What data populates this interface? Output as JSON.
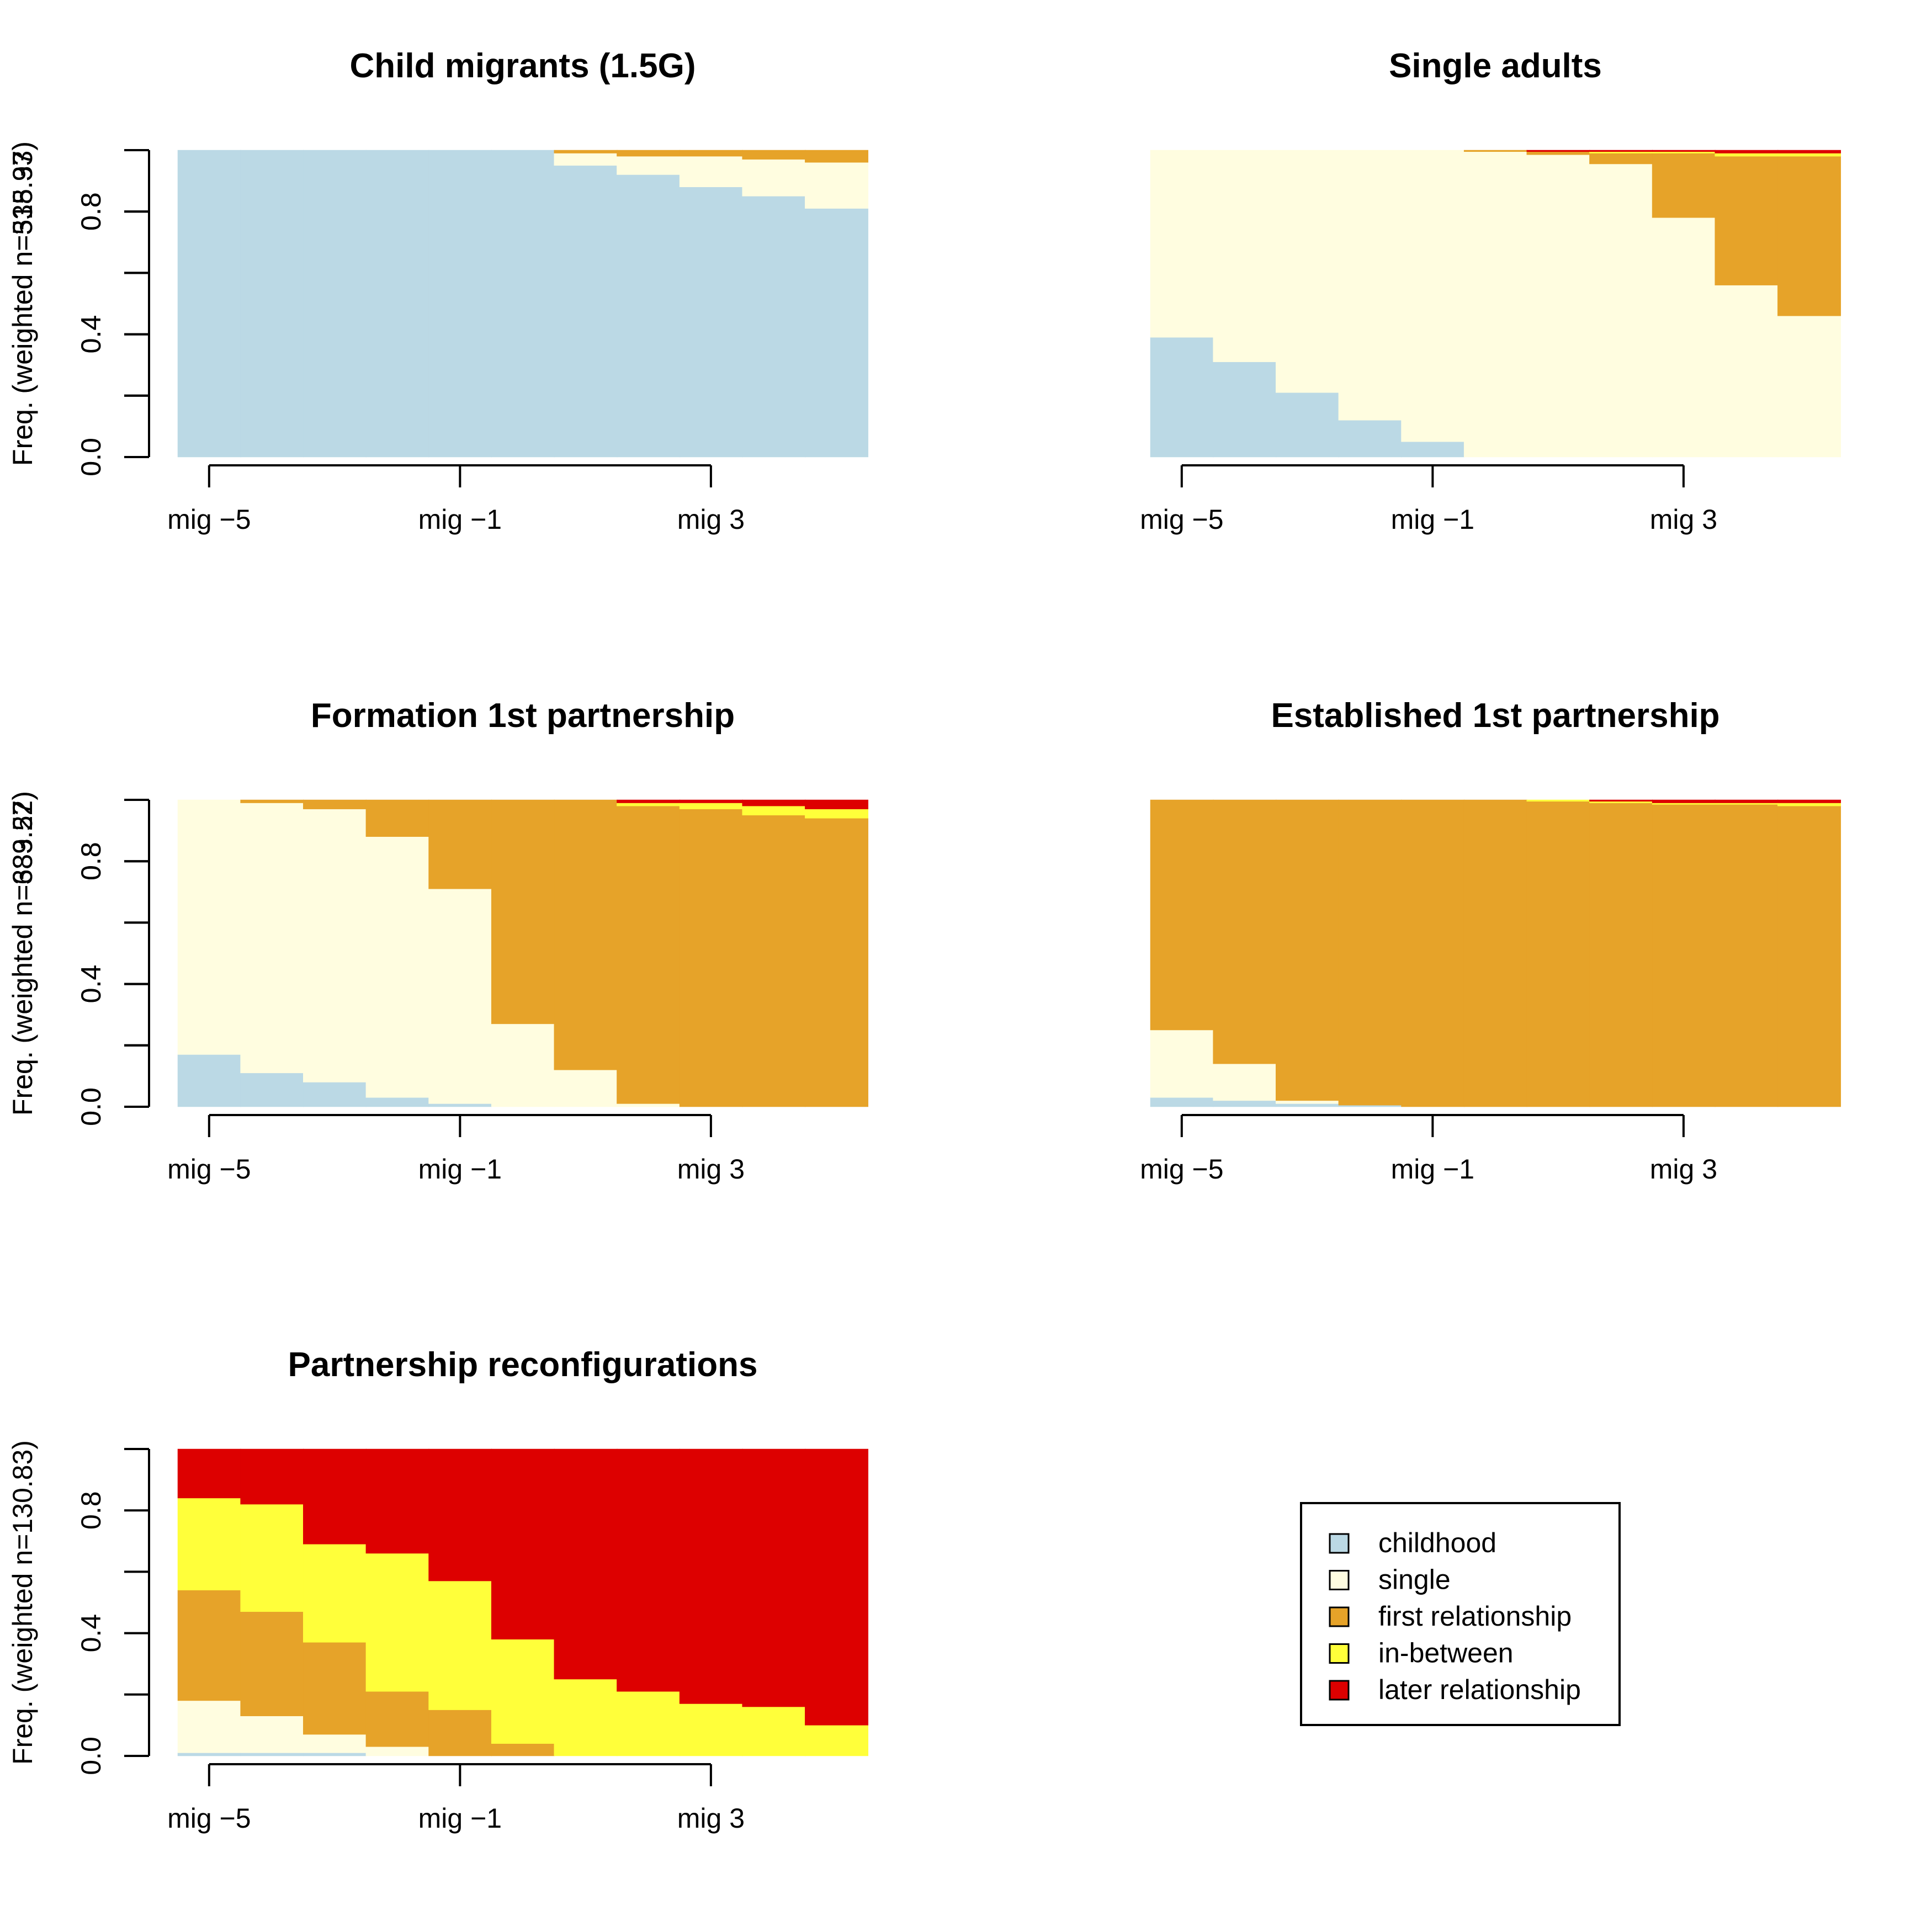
{
  "chart_data": [
    {
      "type": "bar",
      "stacked": true,
      "title": "Child migrants (1.5G)",
      "ylabel": "Freq. (weighted n=538.93)",
      "categories": [
        "mig -5",
        "mig -4",
        "mig -3",
        "mig -2",
        "mig -1",
        "mig 0",
        "mig 1",
        "mig 2",
        "mig 3",
        "mig 4",
        "mig 5"
      ],
      "x_tick_labels": [
        "mig −5",
        "mig −1",
        "mig 3"
      ],
      "x_tick_positions": [
        0,
        4,
        8
      ],
      "y_ticks": [
        "0.0",
        "0.4",
        "0.8"
      ],
      "ylim": [
        0,
        1
      ],
      "series": [
        {
          "state": "childhood",
          "values": [
            1.0,
            1.0,
            1.0,
            1.0,
            1.0,
            1.0,
            0.95,
            0.92,
            0.88,
            0.85,
            0.81
          ]
        },
        {
          "state": "single",
          "values": [
            0.0,
            0.0,
            0.0,
            0.0,
            0.0,
            0.0,
            0.04,
            0.06,
            0.1,
            0.12,
            0.15
          ]
        },
        {
          "state": "first relationship",
          "values": [
            0.0,
            0.0,
            0.0,
            0.0,
            0.0,
            0.0,
            0.01,
            0.02,
            0.02,
            0.03,
            0.04
          ]
        },
        {
          "state": "in-between",
          "values": [
            0,
            0,
            0,
            0,
            0,
            0,
            0,
            0,
            0,
            0,
            0
          ]
        },
        {
          "state": "later relationship",
          "values": [
            0,
            0,
            0,
            0,
            0,
            0,
            0,
            0,
            0,
            0,
            0
          ]
        }
      ]
    },
    {
      "type": "bar",
      "stacked": true,
      "title": "Single adults",
      "ylabel": "Freq. (weighted n=315.37)",
      "categories": [
        "mig -5",
        "mig -4",
        "mig -3",
        "mig -2",
        "mig -1",
        "mig 0",
        "mig 1",
        "mig 2",
        "mig 3",
        "mig 4",
        "mig 5"
      ],
      "x_tick_labels": [
        "mig −5",
        "mig −1",
        "mig 3"
      ],
      "x_tick_positions": [
        0,
        4,
        8
      ],
      "y_ticks": [
        "0.0",
        "0.4",
        "0.8"
      ],
      "ylim": [
        0,
        1
      ],
      "series": [
        {
          "state": "childhood",
          "values": [
            0.39,
            0.31,
            0.21,
            0.12,
            0.05,
            0.0,
            0.0,
            0.0,
            0.0,
            0.0,
            0.0
          ]
        },
        {
          "state": "single",
          "values": [
            0.61,
            0.69,
            0.79,
            0.88,
            0.95,
            0.995,
            0.985,
            0.955,
            0.78,
            0.56,
            0.46
          ]
        },
        {
          "state": "first relationship",
          "values": [
            0.0,
            0.0,
            0.0,
            0.0,
            0.0,
            0.005,
            0.01,
            0.035,
            0.21,
            0.42,
            0.52
          ]
        },
        {
          "state": "in-between",
          "values": [
            0.0,
            0.0,
            0.0,
            0.0,
            0.0,
            0.0,
            0.0,
            0.005,
            0.005,
            0.01,
            0.01
          ]
        },
        {
          "state": "later relationship",
          "values": [
            0.0,
            0.0,
            0.0,
            0.0,
            0.0,
            0.0,
            0.005,
            0.005,
            0.005,
            0.01,
            0.01
          ]
        }
      ]
    },
    {
      "type": "bar",
      "stacked": true,
      "title": "Formation 1st partnership",
      "ylabel": "Freq. (weighted n=683.22)",
      "categories": [
        "mig -5",
        "mig -4",
        "mig -3",
        "mig -2",
        "mig -1",
        "mig 0",
        "mig 1",
        "mig 2",
        "mig 3",
        "mig 4",
        "mig 5"
      ],
      "x_tick_labels": [
        "mig −5",
        "mig −1",
        "mig 3"
      ],
      "x_tick_positions": [
        0,
        4,
        8
      ],
      "y_ticks": [
        "0.0",
        "0.4",
        "0.8"
      ],
      "ylim": [
        0,
        1
      ],
      "series": [
        {
          "state": "childhood",
          "values": [
            0.17,
            0.11,
            0.08,
            0.03,
            0.01,
            0.0,
            0.0,
            0.0,
            0.0,
            0.0,
            0.0
          ]
        },
        {
          "state": "single",
          "values": [
            0.83,
            0.88,
            0.89,
            0.85,
            0.7,
            0.27,
            0.12,
            0.01,
            0.0,
            0.0,
            0.0
          ]
        },
        {
          "state": "first relationship",
          "values": [
            0.0,
            0.01,
            0.03,
            0.12,
            0.29,
            0.73,
            0.88,
            0.97,
            0.97,
            0.95,
            0.94
          ]
        },
        {
          "state": "in-between",
          "values": [
            0.0,
            0.0,
            0.0,
            0.0,
            0.0,
            0.0,
            0.0,
            0.01,
            0.02,
            0.03,
            0.03
          ]
        },
        {
          "state": "later relationship",
          "values": [
            0.0,
            0.0,
            0.0,
            0.0,
            0.0,
            0.0,
            0.0,
            0.01,
            0.01,
            0.02,
            0.03
          ]
        }
      ]
    },
    {
      "type": "bar",
      "stacked": true,
      "title": "Established 1st partnership",
      "ylabel": "Freq. (weighted n=339.57)",
      "categories": [
        "mig -5",
        "mig -4",
        "mig -3",
        "mig -2",
        "mig -1",
        "mig 0",
        "mig 1",
        "mig 2",
        "mig 3",
        "mig 4",
        "mig 5"
      ],
      "x_tick_labels": [
        "mig −5",
        "mig −1",
        "mig 3"
      ],
      "x_tick_positions": [
        0,
        4,
        8
      ],
      "y_ticks": [
        "0.0",
        "0.4",
        "0.8"
      ],
      "ylim": [
        0,
        1
      ],
      "series": [
        {
          "state": "childhood",
          "values": [
            0.03,
            0.02,
            0.01,
            0.005,
            0.0,
            0.0,
            0.0,
            0.0,
            0.0,
            0.0,
            0.0
          ]
        },
        {
          "state": "single",
          "values": [
            0.22,
            0.12,
            0.01,
            0.0,
            0.0,
            0.0,
            0.0,
            0.0,
            0.0,
            0.0,
            0.0
          ]
        },
        {
          "state": "first relationship",
          "values": [
            0.75,
            0.86,
            0.98,
            0.995,
            1.0,
            1.0,
            0.995,
            0.99,
            0.985,
            0.985,
            0.98
          ]
        },
        {
          "state": "in-between",
          "values": [
            0.0,
            0.0,
            0.0,
            0.0,
            0.0,
            0.0,
            0.005,
            0.005,
            0.005,
            0.005,
            0.01
          ]
        },
        {
          "state": "later relationship",
          "values": [
            0.0,
            0.0,
            0.0,
            0.0,
            0.0,
            0.0,
            0.0,
            0.005,
            0.01,
            0.01,
            0.01
          ]
        }
      ]
    },
    {
      "type": "bar",
      "stacked": true,
      "title": "Partnership reconfigurations",
      "ylabel": "Freq. (weighted n=130.83)",
      "categories": [
        "mig -5",
        "mig -4",
        "mig -3",
        "mig -2",
        "mig -1",
        "mig 0",
        "mig 1",
        "mig 2",
        "mig 3",
        "mig 4",
        "mig 5"
      ],
      "x_tick_labels": [
        "mig −5",
        "mig −1",
        "mig 3"
      ],
      "x_tick_positions": [
        0,
        4,
        8
      ],
      "y_ticks": [
        "0.0",
        "0.4",
        "0.8"
      ],
      "ylim": [
        0,
        1
      ],
      "series": [
        {
          "state": "childhood",
          "values": [
            0.01,
            0.01,
            0.01,
            0.0,
            0.0,
            0.0,
            0.0,
            0.0,
            0.0,
            0.0,
            0.0
          ]
        },
        {
          "state": "single",
          "values": [
            0.17,
            0.12,
            0.06,
            0.03,
            0.0,
            0.0,
            0.0,
            0.0,
            0.0,
            0.0,
            0.0
          ]
        },
        {
          "state": "first relationship",
          "values": [
            0.36,
            0.34,
            0.3,
            0.18,
            0.15,
            0.04,
            0.0,
            0.0,
            0.0,
            0.0,
            0.0
          ]
        },
        {
          "state": "in-between",
          "values": [
            0.3,
            0.35,
            0.32,
            0.45,
            0.42,
            0.34,
            0.25,
            0.21,
            0.17,
            0.16,
            0.1
          ]
        },
        {
          "state": "later relationship",
          "values": [
            0.16,
            0.18,
            0.31,
            0.34,
            0.43,
            0.62,
            0.75,
            0.79,
            0.83,
            0.84,
            0.9
          ]
        }
      ]
    }
  ],
  "legend": {
    "position": "bottom-right",
    "items": [
      {
        "label": "childhood",
        "color": "#BBD9E5"
      },
      {
        "label": "single",
        "color": "#FFFDE0"
      },
      {
        "label": "first relationship",
        "color": "#E6A329"
      },
      {
        "label": "in-between",
        "color": "#FFFF3A"
      },
      {
        "label": "later relationship",
        "color": "#DD0000"
      }
    ]
  },
  "colors": {
    "childhood": "#BBD9E5",
    "single": "#FFFDE0",
    "first relationship": "#E6A329",
    "in-between": "#FFFF3A",
    "later relationship": "#DD0000"
  }
}
